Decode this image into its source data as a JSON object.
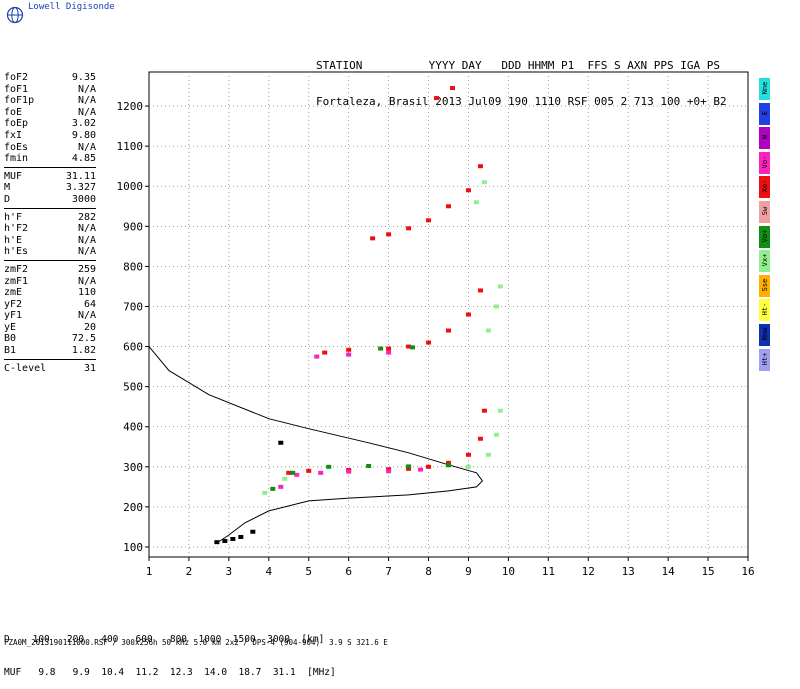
{
  "logo": {
    "text": "Lowell Digisonde",
    "icon": "globe-icon"
  },
  "header": {
    "line1": "STATION          YYYY DAY   DDD HHMM P1  FFS S AXN PPS IGA PS",
    "line2": "Fortaleza, Brasil 2013 Jul09 190 1110 RSF 005 2 713 100 +0+ B2"
  },
  "params": {
    "group1": [
      {
        "k": "foF2",
        "v": "9.35"
      },
      {
        "k": "foF1",
        "v": "N/A"
      },
      {
        "k": "foF1p",
        "v": "N/A"
      },
      {
        "k": "foE",
        "v": "N/A"
      },
      {
        "k": "foEp",
        "v": "3.02"
      },
      {
        "k": "fxI",
        "v": "9.80"
      },
      {
        "k": "foEs",
        "v": "N/A"
      },
      {
        "k": "fmin",
        "v": "4.85"
      }
    ],
    "group2": [
      {
        "k": "MUF",
        "v": "31.11"
      },
      {
        "k": "M",
        "v": "3.327"
      },
      {
        "k": "D",
        "v": "3000"
      }
    ],
    "group3": [
      {
        "k": "h'F",
        "v": "282"
      },
      {
        "k": "h'F2",
        "v": "N/A"
      },
      {
        "k": "h'E",
        "v": "N/A"
      },
      {
        "k": "h'Es",
        "v": "N/A"
      }
    ],
    "group4": [
      {
        "k": "zmF2",
        "v": "259"
      },
      {
        "k": "zmF1",
        "v": "N/A"
      },
      {
        "k": "zmE",
        "v": "110"
      },
      {
        "k": "yF2",
        "v": "64"
      },
      {
        "k": "yF1",
        "v": "N/A"
      },
      {
        "k": "yE",
        "v": "20"
      },
      {
        "k": "B0",
        "v": "72.5"
      },
      {
        "k": "B1",
        "v": "1.82"
      }
    ],
    "group5": [
      {
        "k": "C-level",
        "v": "31"
      }
    ]
  },
  "legend": [
    {
      "label": "Nne",
      "color": "#22e0e0"
    },
    {
      "label": "E",
      "color": "#2040e0"
    },
    {
      "label": "W",
      "color": "#b000c0"
    },
    {
      "label": "Vo-",
      "color": "#ff20c0"
    },
    {
      "label": "Xo-",
      "color": "#ee1010"
    },
    {
      "label": "Sw",
      "color": "#f0a0a0"
    },
    {
      "label": "Vo+",
      "color": "#109010"
    },
    {
      "label": "Vx+",
      "color": "#90f090"
    },
    {
      "label": "Sse",
      "color": "#ffb000"
    },
    {
      "label": "Ht-",
      "color": "#ffff40"
    },
    {
      "label": "Nnw",
      "color": "#1030b0"
    },
    {
      "label": "Ht+",
      "color": "#a0a0f0"
    }
  ],
  "bottom": {
    "row1": "D    100   200   400   600   800  1000  1500  3000  [km]",
    "row2": "MUF   9.8   9.9  10.4  11.2  12.3  14.0  18.7  31.1  [MHz]"
  },
  "footer": "FZA0M_2013190111000.RSF / 300x256h 50 kHz 5.0 km 2x2 / DPS-4 (904-904)  3.9 S 321.6 E",
  "chart_data": {
    "type": "scatter",
    "title": "",
    "xlabel": "",
    "ylabel": "",
    "xlim": [
      1,
      16
    ],
    "ylim": [
      75,
      1285
    ],
    "xticks": [
      1,
      2,
      3,
      4,
      5,
      6,
      7,
      8,
      9,
      10,
      11,
      12,
      13,
      14,
      15,
      16
    ],
    "yticks": [
      100,
      200,
      300,
      400,
      500,
      600,
      700,
      800,
      900,
      1000,
      1100,
      1200
    ],
    "grid": true,
    "series": [
      {
        "color": "#ee1010",
        "points": [
          [
            4.5,
            285
          ],
          [
            5,
            290
          ],
          [
            6,
            292
          ],
          [
            7,
            294
          ],
          [
            7.5,
            295
          ],
          [
            8,
            300
          ],
          [
            8.5,
            310
          ],
          [
            9,
            330
          ],
          [
            9.3,
            370
          ],
          [
            9.4,
            440
          ],
          [
            5.4,
            585
          ],
          [
            6,
            592
          ],
          [
            7,
            595
          ],
          [
            7.5,
            600
          ],
          [
            8,
            610
          ],
          [
            8.5,
            640
          ],
          [
            9,
            680
          ],
          [
            9.3,
            740
          ],
          [
            6.6,
            870
          ],
          [
            7,
            880
          ],
          [
            7.5,
            895
          ],
          [
            8,
            915
          ],
          [
            8.5,
            950
          ],
          [
            9,
            990
          ],
          [
            9.3,
            1050
          ],
          [
            8.2,
            1220
          ],
          [
            8.6,
            1245
          ]
        ]
      },
      {
        "color": "#ff20c0",
        "points": [
          [
            4.3,
            250
          ],
          [
            4.7,
            280
          ],
          [
            5.3,
            285
          ],
          [
            6,
            288
          ],
          [
            7,
            289
          ],
          [
            7.8,
            293
          ],
          [
            5.2,
            575
          ],
          [
            6,
            580
          ],
          [
            7,
            585
          ]
        ]
      },
      {
        "color": "#109010",
        "points": [
          [
            4.1,
            245
          ],
          [
            4.6,
            285
          ],
          [
            5.5,
            300
          ],
          [
            6.5,
            302
          ],
          [
            7.5,
            301
          ],
          [
            8.5,
            304
          ],
          [
            6.8,
            595
          ],
          [
            7.6,
            598
          ]
        ]
      },
      {
        "color": "#90f090",
        "points": [
          [
            3.9,
            235
          ],
          [
            4.4,
            270
          ],
          [
            9.0,
            300
          ],
          [
            9.5,
            330
          ],
          [
            9.7,
            380
          ],
          [
            9.8,
            440
          ],
          [
            9.5,
            640
          ],
          [
            9.7,
            700
          ],
          [
            9.8,
            750
          ],
          [
            9.2,
            960
          ],
          [
            9.4,
            1010
          ]
        ]
      },
      {
        "color": "#000000",
        "points": [
          [
            2.7,
            112
          ],
          [
            2.9,
            115
          ],
          [
            3.1,
            120
          ],
          [
            3.3,
            125
          ],
          [
            3.6,
            138
          ],
          [
            4.3,
            360
          ]
        ]
      }
    ],
    "profile_curve": [
      [
        1,
        600
      ],
      [
        1.5,
        540
      ],
      [
        2.5,
        480
      ],
      [
        4,
        420
      ],
      [
        5,
        395
      ],
      [
        6.5,
        360
      ],
      [
        7.5,
        335
      ],
      [
        8.5,
        305
      ],
      [
        9.2,
        285
      ],
      [
        9.35,
        265
      ],
      [
        9.2,
        250
      ],
      [
        8.5,
        240
      ],
      [
        7.5,
        230
      ],
      [
        6,
        222
      ],
      [
        5,
        215
      ],
      [
        4,
        190
      ],
      [
        3.4,
        160
      ],
      [
        3,
        130
      ],
      [
        2.7,
        110
      ]
    ]
  }
}
